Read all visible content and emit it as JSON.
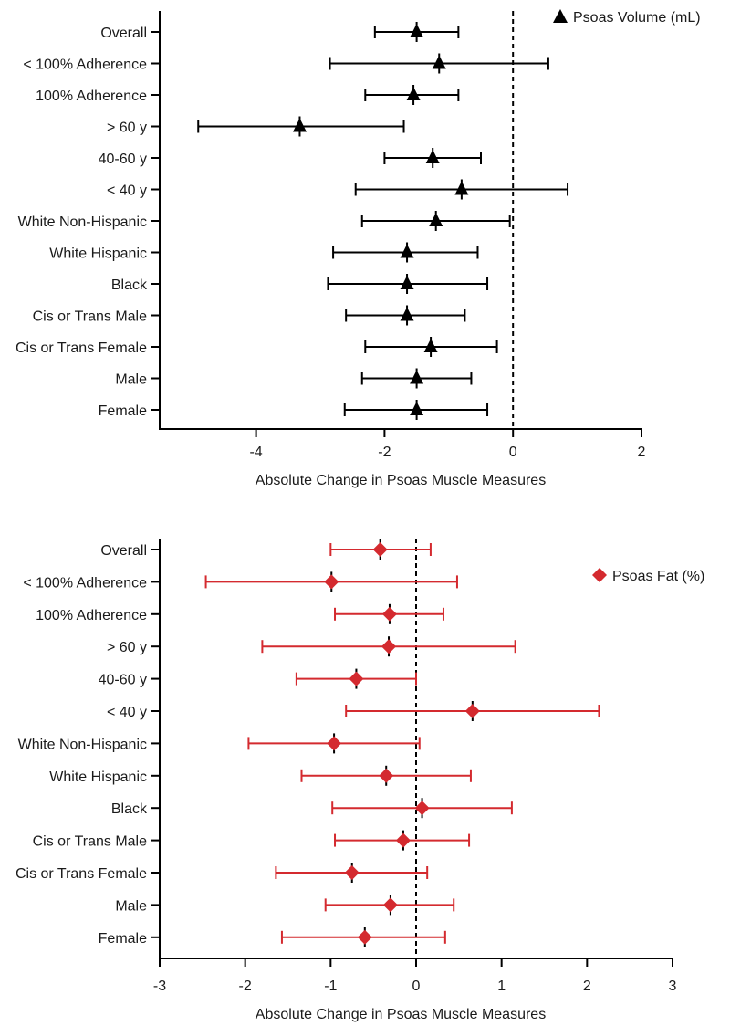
{
  "colors": {
    "series_1": "#000000",
    "series_2": "#d42a2f",
    "axis": "#000000"
  },
  "chart_data": [
    {
      "type": "forest",
      "marker": "triangle",
      "color": "#000000",
      "legend": "Psoas Volume (mL)",
      "legend_position": "top-right",
      "xlabel": "Absolute Change in Psoas Muscle Measures",
      "xlim": [
        -5.5,
        2
      ],
      "xticks": [
        -4,
        -2,
        0,
        2
      ],
      "reference_line": 0,
      "categories": [
        "Overall",
        "< 100% Adherence",
        "100% Adherence",
        "> 60 y",
        "40-60 y",
        "< 40 y",
        "White Non-Hispanic",
        "White Hispanic",
        "Black",
        "Cis or Trans Male",
        "Cis or Trans Female",
        "Male",
        "Female"
      ],
      "estimates": [
        -1.5,
        -1.15,
        -1.55,
        -3.32,
        -1.25,
        -0.8,
        -1.2,
        -1.65,
        -1.65,
        -1.65,
        -1.28,
        -1.5,
        -1.5
      ],
      "lower": [
        -2.15,
        -2.85,
        -2.3,
        -4.9,
        -2.0,
        -2.45,
        -2.35,
        -2.8,
        -2.88,
        -2.6,
        -2.3,
        -2.35,
        -2.62
      ],
      "upper": [
        -0.85,
        0.55,
        -0.85,
        -1.7,
        -0.5,
        0.85,
        -0.05,
        -0.55,
        -0.4,
        -0.75,
        -0.25,
        -0.65,
        -0.4
      ]
    },
    {
      "type": "forest",
      "marker": "diamond",
      "color": "#d42a2f",
      "legend": "Psoas Fat (%)",
      "legend_position": "top-right",
      "xlabel": "Absolute Change in Psoas Muscle Measures",
      "xlim": [
        -3,
        3
      ],
      "xticks": [
        -3,
        -2,
        -1,
        0,
        1,
        2,
        3
      ],
      "reference_line": 0,
      "categories": [
        "Overall",
        "< 100% Adherence",
        "100% Adherence",
        "> 60 y",
        "40-60 y",
        "< 40 y",
        "White Non-Hispanic",
        "White Hispanic",
        "Black",
        "Cis or Trans Male",
        "Cis or Trans Female",
        "Male",
        "Female"
      ],
      "estimates": [
        -0.42,
        -0.99,
        -0.31,
        -0.32,
        -0.7,
        0.66,
        -0.96,
        -0.35,
        0.07,
        -0.15,
        -0.75,
        -0.3,
        -0.6
      ],
      "lower": [
        -1.0,
        -2.46,
        -0.95,
        -1.8,
        -1.4,
        -0.82,
        -1.96,
        -1.34,
        -0.98,
        -0.95,
        -1.64,
        -1.06,
        -1.57
      ],
      "upper": [
        0.17,
        0.48,
        0.32,
        1.16,
        0.0,
        2.14,
        0.04,
        0.64,
        1.12,
        0.62,
        0.13,
        0.44,
        0.34
      ]
    }
  ]
}
